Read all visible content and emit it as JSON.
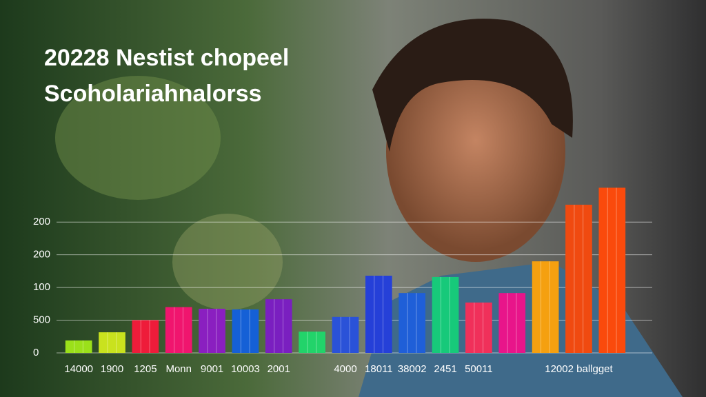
{
  "chart_data": {
    "type": "bar",
    "title": "20228 Nestist chopeel",
    "subtitle": "Scoholariahnalorss",
    "categories": [
      "14000",
      "1900",
      "1205",
      "Monn",
      "9001",
      "10003",
      "2001",
      null,
      "4000",
      "18011",
      "38002",
      "2451",
      "50011",
      null,
      null,
      "12002 ballgget",
      null
    ],
    "values": [
      0.38,
      0.63,
      1.0,
      1.4,
      1.35,
      1.33,
      1.64,
      0.65,
      1.1,
      2.36,
      1.83,
      2.32,
      1.54,
      1.83,
      2.8,
      4.53,
      5.05
    ],
    "colors": [
      "#9be01a",
      "#c9e21e",
      "#ee1c3a",
      "#f0156e",
      "#8a1fc0",
      "#1560d6",
      "#7a1fc0",
      "#22d36a",
      "#2a52d8",
      "#2540d8",
      "#1f5fd8",
      "#17c97a",
      "#f0305a",
      "#e8158a",
      "#f5a010",
      "#f04a10",
      "#fa4a0c"
    ],
    "ylim": [
      0,
      5.1
    ],
    "yticks": [
      {
        "value": 0,
        "label": "0"
      },
      {
        "value": 1,
        "label": "500"
      },
      {
        "value": 2,
        "label": "100"
      },
      {
        "value": 3,
        "label": "200"
      },
      {
        "value": 4,
        "label": "200"
      }
    ],
    "grid": true
  }
}
